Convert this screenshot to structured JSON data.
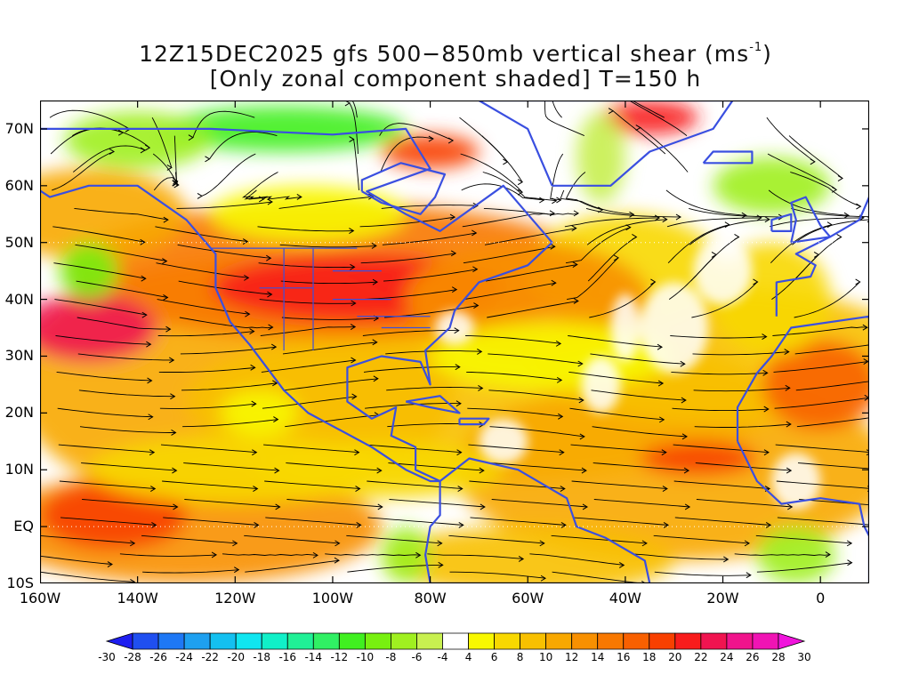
{
  "title": {
    "line1_prefix": "12Z15DEC2025 gfs 500−850mb vertical shear (ms",
    "line1_sup": "-1",
    "line1_suffix": ")",
    "line2": "[Only zonal component shaded] T=150 h"
  },
  "map": {
    "projection": "cylindrical",
    "lon_range": [
      -160,
      10
    ],
    "lat_range": [
      -10,
      75
    ],
    "lat_labels": [
      "70N",
      "60N",
      "50N",
      "40N",
      "30N",
      "20N",
      "10N",
      "EQ",
      "10S"
    ],
    "lon_labels": [
      "160W",
      "140W",
      "120W",
      "100W",
      "80W",
      "60W",
      "40W",
      "20W",
      "0"
    ],
    "boundary_color": "#3a4fe0",
    "streamline_color": "#000000",
    "frame_color": "#000000"
  },
  "colorbar": {
    "labels": [
      "-30",
      "-28",
      "-26",
      "-24",
      "-22",
      "-20",
      "-18",
      "-16",
      "-14",
      "-12",
      "-10",
      "-8",
      "-6",
      "-4",
      "4",
      "6",
      "8",
      "10",
      "12",
      "14",
      "16",
      "18",
      "20",
      "22",
      "24",
      "26",
      "28",
      "30"
    ],
    "colors": [
      "#1e1ef0",
      "#1f4ff0",
      "#1e78f5",
      "#1ea0f0",
      "#14c0f0",
      "#10e6f0",
      "#10f0c8",
      "#20f096",
      "#30f064",
      "#40f020",
      "#78f010",
      "#a0f020",
      "#c8f050",
      "#ffffff",
      "#f8f800",
      "#f8d800",
      "#f8c000",
      "#f8a800",
      "#f89000",
      "#f87800",
      "#f86000",
      "#f84000",
      "#f81c1c",
      "#f01450",
      "#f0148c",
      "#f014b4",
      "#f014dc"
    ]
  }
}
